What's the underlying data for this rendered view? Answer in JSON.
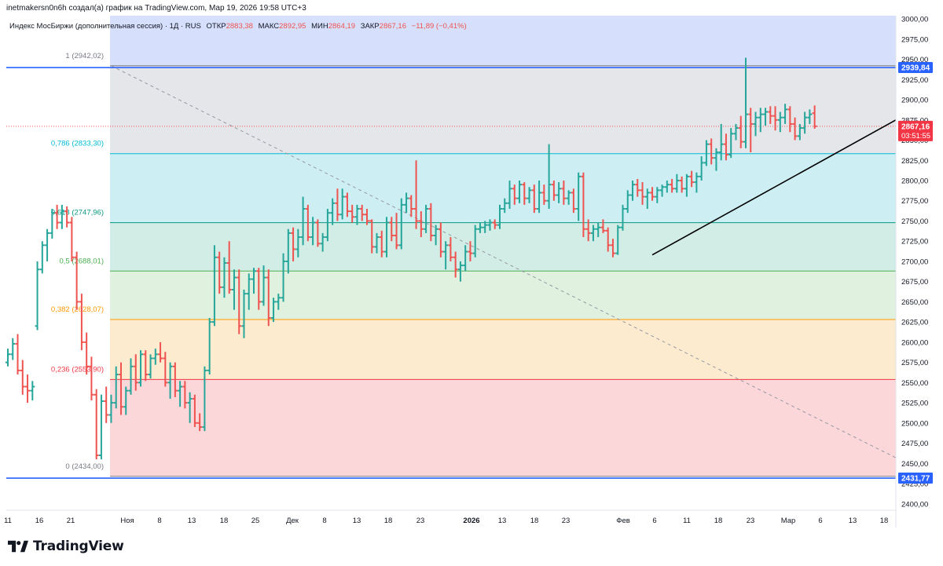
{
  "header": {
    "attribution": "inetmakersn0n6h создал(а) график на TradingView.com, Мар 19, 2026 19:58 UTC+3"
  },
  "legend": {
    "symbol": "Индекс МосБиржи (дополнительная сессия) · 1Д · RUS",
    "open_label": "ОТКР",
    "open": "2883,38",
    "high_label": "МАКС",
    "high": "2892,95",
    "low_label": "МИН",
    "low": "2864,19",
    "close_label": "ЗАКР",
    "close": "2867,16",
    "change": "−11,89 (−0,41%)"
  },
  "price_tags": {
    "upper_level": "2939,84",
    "current_price": "2867,16",
    "countdown": "03:51:55",
    "lower_level": "2431,77"
  },
  "brand": {
    "name": "TradingView"
  },
  "colors": {
    "up": "#26a69a",
    "down": "#ef5350",
    "level_line": "#2962ff",
    "trend": "#000000"
  },
  "chart_data": {
    "type": "ohlc",
    "y_axis": {
      "range": [
        2392,
        3004
      ],
      "ticks": [
        "3000,00",
        "2975,00",
        "2950,00",
        "2925,00",
        "2900,00",
        "2875,00",
        "2850,00",
        "2825,00",
        "2800,00",
        "2775,00",
        "2750,00",
        "2725,00",
        "2700,00",
        "2675,00",
        "2650,00",
        "2625,00",
        "2600,00",
        "2575,00",
        "2550,00",
        "2525,00",
        "2500,00",
        "2475,00",
        "2450,00",
        "2425,00",
        "2400,00"
      ],
      "tick_values": [
        3000,
        2975,
        2950,
        2925,
        2900,
        2875,
        2850,
        2825,
        2800,
        2775,
        2750,
        2725,
        2700,
        2675,
        2650,
        2625,
        2600,
        2575,
        2550,
        2525,
        2500,
        2475,
        2450,
        2425,
        2400
      ]
    },
    "x_axis": {
      "labels": [
        "11",
        "16",
        "21",
        "Ноя",
        "8",
        "13",
        "18",
        "25",
        "Дек",
        "8",
        "13",
        "18",
        "23",
        "2026",
        "13",
        "18",
        "23",
        "Фев",
        "6",
        "11",
        "18",
        "23",
        "Мар",
        "6",
        "13",
        "18"
      ]
    },
    "fibonacci": [
      {
        "ratio": "1",
        "value": 2942.02,
        "label": "1 (2942,02)",
        "color": "#787b86"
      },
      {
        "ratio": "0.786",
        "value": 2833.3,
        "label": "0,786 (2833,30)",
        "color": "#00bcd4"
      },
      {
        "ratio": "0.618",
        "value": 2747.96,
        "label": "0,618 (2747,96)",
        "color": "#089981"
      },
      {
        "ratio": "0.5",
        "value": 2688.01,
        "label": "0,5 (2688,01)",
        "color": "#4caf50"
      },
      {
        "ratio": "0.382",
        "value": 2628.07,
        "label": "0,382 (2628,07)",
        "color": "#ff9800"
      },
      {
        "ratio": "0.236",
        "value": 2553.9,
        "label": "0,236 (2553,90)",
        "color": "#f23645"
      },
      {
        "ratio": "0",
        "value": 2434.0,
        "label": "0 (2434,00)",
        "color": "#787b86"
      }
    ],
    "horizontal_levels": [
      2939.84,
      2431.77
    ],
    "current_price": 2867.16,
    "bars": [
      [
        2575,
        2592,
        2570,
        2585
      ],
      [
        2585,
        2605,
        2578,
        2598
      ],
      [
        2598,
        2610,
        2560,
        2565
      ],
      [
        2565,
        2578,
        2535,
        2545
      ],
      [
        2545,
        2560,
        2525,
        2540
      ],
      [
        2540,
        2552,
        2528,
        2545
      ],
      [
        2620,
        2700,
        2615,
        2690
      ],
      [
        2690,
        2725,
        2685,
        2720
      ],
      [
        2720,
        2740,
        2700,
        2735
      ],
      [
        2735,
        2765,
        2728,
        2760
      ],
      [
        2760,
        2770,
        2740,
        2748
      ],
      [
        2748,
        2770,
        2740,
        2762
      ],
      [
        2762,
        2768,
        2742,
        2748
      ],
      [
        2748,
        2755,
        2700,
        2705
      ],
      [
        2705,
        2712,
        2640,
        2650
      ],
      [
        2650,
        2660,
        2590,
        2600
      ],
      [
        2600,
        2612,
        2560,
        2570
      ],
      [
        2570,
        2582,
        2528,
        2535
      ],
      [
        2535,
        2542,
        2455,
        2460
      ],
      [
        2460,
        2535,
        2455,
        2527
      ],
      [
        2527,
        2545,
        2500,
        2510
      ],
      [
        2510,
        2535,
        2500,
        2525
      ],
      [
        2525,
        2570,
        2518,
        2560
      ],
      [
        2560,
        2575,
        2510,
        2520
      ],
      [
        2520,
        2545,
        2510,
        2540
      ],
      [
        2540,
        2580,
        2535,
        2570
      ],
      [
        2570,
        2585,
        2540,
        2550
      ],
      [
        2550,
        2590,
        2545,
        2585
      ],
      [
        2585,
        2590,
        2552,
        2560
      ],
      [
        2560,
        2585,
        2555,
        2580
      ],
      [
        2580,
        2592,
        2572,
        2585
      ],
      [
        2585,
        2600,
        2575,
        2580
      ],
      [
        2580,
        2588,
        2545,
        2550
      ],
      [
        2550,
        2575,
        2530,
        2570
      ],
      [
        2570,
        2575,
        2532,
        2540
      ],
      [
        2540,
        2552,
        2520,
        2545
      ],
      [
        2545,
        2552,
        2518,
        2525
      ],
      [
        2525,
        2538,
        2500,
        2530
      ],
      [
        2530,
        2535,
        2495,
        2500
      ],
      [
        2500,
        2512,
        2490,
        2495
      ],
      [
        2495,
        2570,
        2490,
        2565
      ],
      [
        2565,
        2630,
        2560,
        2625
      ],
      [
        2625,
        2720,
        2620,
        2705
      ],
      [
        2705,
        2712,
        2660,
        2668
      ],
      [
        2668,
        2705,
        2655,
        2698
      ],
      [
        2698,
        2725,
        2660,
        2665
      ],
      [
        2665,
        2690,
        2640,
        2680
      ],
      [
        2680,
        2690,
        2610,
        2620
      ],
      [
        2620,
        2665,
        2605,
        2660
      ],
      [
        2660,
        2685,
        2640,
        2678
      ],
      [
        2678,
        2692,
        2660,
        2688
      ],
      [
        2688,
        2692,
        2640,
        2650
      ],
      [
        2650,
        2695,
        2645,
        2680
      ],
      [
        2680,
        2690,
        2620,
        2630
      ],
      [
        2630,
        2655,
        2625,
        2650
      ],
      [
        2650,
        2660,
        2640,
        2655
      ],
      [
        2655,
        2710,
        2650,
        2700
      ],
      [
        2700,
        2740,
        2685,
        2735
      ],
      [
        2735,
        2742,
        2700,
        2715
      ],
      [
        2715,
        2740,
        2705,
        2730
      ],
      [
        2730,
        2780,
        2720,
        2765
      ],
      [
        2765,
        2770,
        2725,
        2730
      ],
      [
        2730,
        2755,
        2720,
        2748
      ],
      [
        2748,
        2752,
        2718,
        2722
      ],
      [
        2722,
        2735,
        2712,
        2730
      ],
      [
        2730,
        2765,
        2725,
        2760
      ],
      [
        2760,
        2778,
        2745,
        2772
      ],
      [
        2772,
        2790,
        2750,
        2758
      ],
      [
        2758,
        2790,
        2752,
        2780
      ],
      [
        2780,
        2785,
        2755,
        2762
      ],
      [
        2762,
        2770,
        2748,
        2755
      ],
      [
        2755,
        2770,
        2745,
        2765
      ],
      [
        2765,
        2770,
        2750,
        2758
      ],
      [
        2758,
        2765,
        2745,
        2750
      ],
      [
        2750,
        2752,
        2710,
        2718
      ],
      [
        2718,
        2735,
        2710,
        2730
      ],
      [
        2730,
        2738,
        2705,
        2712
      ],
      [
        2712,
        2755,
        2705,
        2748
      ],
      [
        2748,
        2755,
        2725,
        2732
      ],
      [
        2732,
        2760,
        2715,
        2720
      ],
      [
        2720,
        2778,
        2715,
        2770
      ],
      [
        2770,
        2785,
        2760,
        2778
      ],
      [
        2778,
        2782,
        2755,
        2765
      ],
      [
        2765,
        2825,
        2740,
        2750
      ],
      [
        2750,
        2762,
        2730,
        2740
      ],
      [
        2740,
        2770,
        2735,
        2765
      ],
      [
        2765,
        2772,
        2725,
        2732
      ],
      [
        2732,
        2745,
        2720,
        2740
      ],
      [
        2740,
        2748,
        2705,
        2712
      ],
      [
        2712,
        2725,
        2690,
        2720
      ],
      [
        2720,
        2730,
        2700,
        2705
      ],
      [
        2705,
        2712,
        2680,
        2690
      ],
      [
        2690,
        2700,
        2675,
        2695
      ],
      [
        2695,
        2720,
        2688,
        2712
      ],
      [
        2712,
        2725,
        2700,
        2710
      ],
      [
        2710,
        2745,
        2705,
        2740
      ],
      [
        2740,
        2748,
        2735,
        2742
      ],
      [
        2742,
        2750,
        2735,
        2745
      ],
      [
        2745,
        2752,
        2738,
        2748
      ],
      [
        2748,
        2752,
        2740,
        2745
      ],
      [
        2745,
        2770,
        2740,
        2765
      ],
      [
        2765,
        2778,
        2760,
        2772
      ],
      [
        2772,
        2800,
        2765,
        2790
      ],
      [
        2790,
        2795,
        2770,
        2778
      ],
      [
        2778,
        2800,
        2772,
        2795
      ],
      [
        2795,
        2798,
        2770,
        2778
      ],
      [
        2778,
        2792,
        2772,
        2788
      ],
      [
        2788,
        2795,
        2760,
        2765
      ],
      [
        2765,
        2800,
        2760,
        2785
      ],
      [
        2785,
        2795,
        2770,
        2775
      ],
      [
        2775,
        2845,
        2765,
        2795
      ],
      [
        2795,
        2800,
        2775,
        2782
      ],
      [
        2782,
        2798,
        2772,
        2790
      ],
      [
        2790,
        2800,
        2770,
        2778
      ],
      [
        2778,
        2788,
        2770,
        2785
      ],
      [
        2785,
        2790,
        2760,
        2765
      ],
      [
        2765,
        2810,
        2750,
        2805
      ],
      [
        2805,
        2810,
        2730,
        2740
      ],
      [
        2740,
        2752,
        2725,
        2735
      ],
      [
        2735,
        2745,
        2725,
        2740
      ],
      [
        2740,
        2748,
        2730,
        2742
      ],
      [
        2742,
        2752,
        2735,
        2738
      ],
      [
        2738,
        2742,
        2712,
        2720
      ],
      [
        2720,
        2728,
        2705,
        2710
      ],
      [
        2710,
        2745,
        2708,
        2742
      ],
      [
        2742,
        2770,
        2738,
        2765
      ],
      [
        2765,
        2788,
        2760,
        2782
      ],
      [
        2782,
        2800,
        2775,
        2795
      ],
      [
        2795,
        2802,
        2780,
        2788
      ],
      [
        2788,
        2798,
        2770,
        2780
      ],
      [
        2780,
        2790,
        2765,
        2785
      ],
      [
        2785,
        2792,
        2775,
        2780
      ],
      [
        2780,
        2792,
        2772,
        2788
      ],
      [
        2788,
        2795,
        2780,
        2792
      ],
      [
        2792,
        2800,
        2785,
        2795
      ],
      [
        2795,
        2802,
        2785,
        2790
      ],
      [
        2790,
        2808,
        2785,
        2800
      ],
      [
        2800,
        2805,
        2785,
        2790
      ],
      [
        2790,
        2808,
        2780,
        2805
      ],
      [
        2805,
        2812,
        2792,
        2798
      ],
      [
        2798,
        2810,
        2785,
        2805
      ],
      [
        2805,
        2830,
        2800,
        2822
      ],
      [
        2822,
        2850,
        2818,
        2845
      ],
      [
        2845,
        2852,
        2820,
        2828
      ],
      [
        2828,
        2840,
        2812,
        2835
      ],
      [
        2835,
        2870,
        2825,
        2845
      ],
      [
        2845,
        2858,
        2825,
        2832
      ],
      [
        2832,
        2865,
        2828,
        2858
      ],
      [
        2858,
        2870,
        2850,
        2865
      ],
      [
        2865,
        2880,
        2840,
        2848
      ],
      [
        2848,
        2952,
        2840,
        2882
      ],
      [
        2882,
        2890,
        2835,
        2870
      ],
      [
        2870,
        2885,
        2855,
        2878
      ],
      [
        2878,
        2890,
        2860,
        2882
      ],
      [
        2882,
        2890,
        2868,
        2885
      ],
      [
        2885,
        2892,
        2870,
        2880
      ],
      [
        2880,
        2892,
        2862,
        2875
      ],
      [
        2875,
        2885,
        2860,
        2878
      ],
      [
        2878,
        2895,
        2870,
        2888
      ],
      [
        2888,
        2892,
        2860,
        2870
      ],
      [
        2870,
        2878,
        2850,
        2855
      ],
      [
        2855,
        2870,
        2850,
        2865
      ],
      [
        2865,
        2885,
        2858,
        2878
      ],
      [
        2878,
        2888,
        2870,
        2882
      ],
      [
        2883.38,
        2892.95,
        2864.19,
        2867.16
      ]
    ],
    "trend_line": {
      "from_bar": 131,
      "from_value": 2708,
      "to_value": 2875
    },
    "diagonal": {
      "from_bar": 21,
      "from_value": 2942,
      "to_value": 2457
    }
  }
}
